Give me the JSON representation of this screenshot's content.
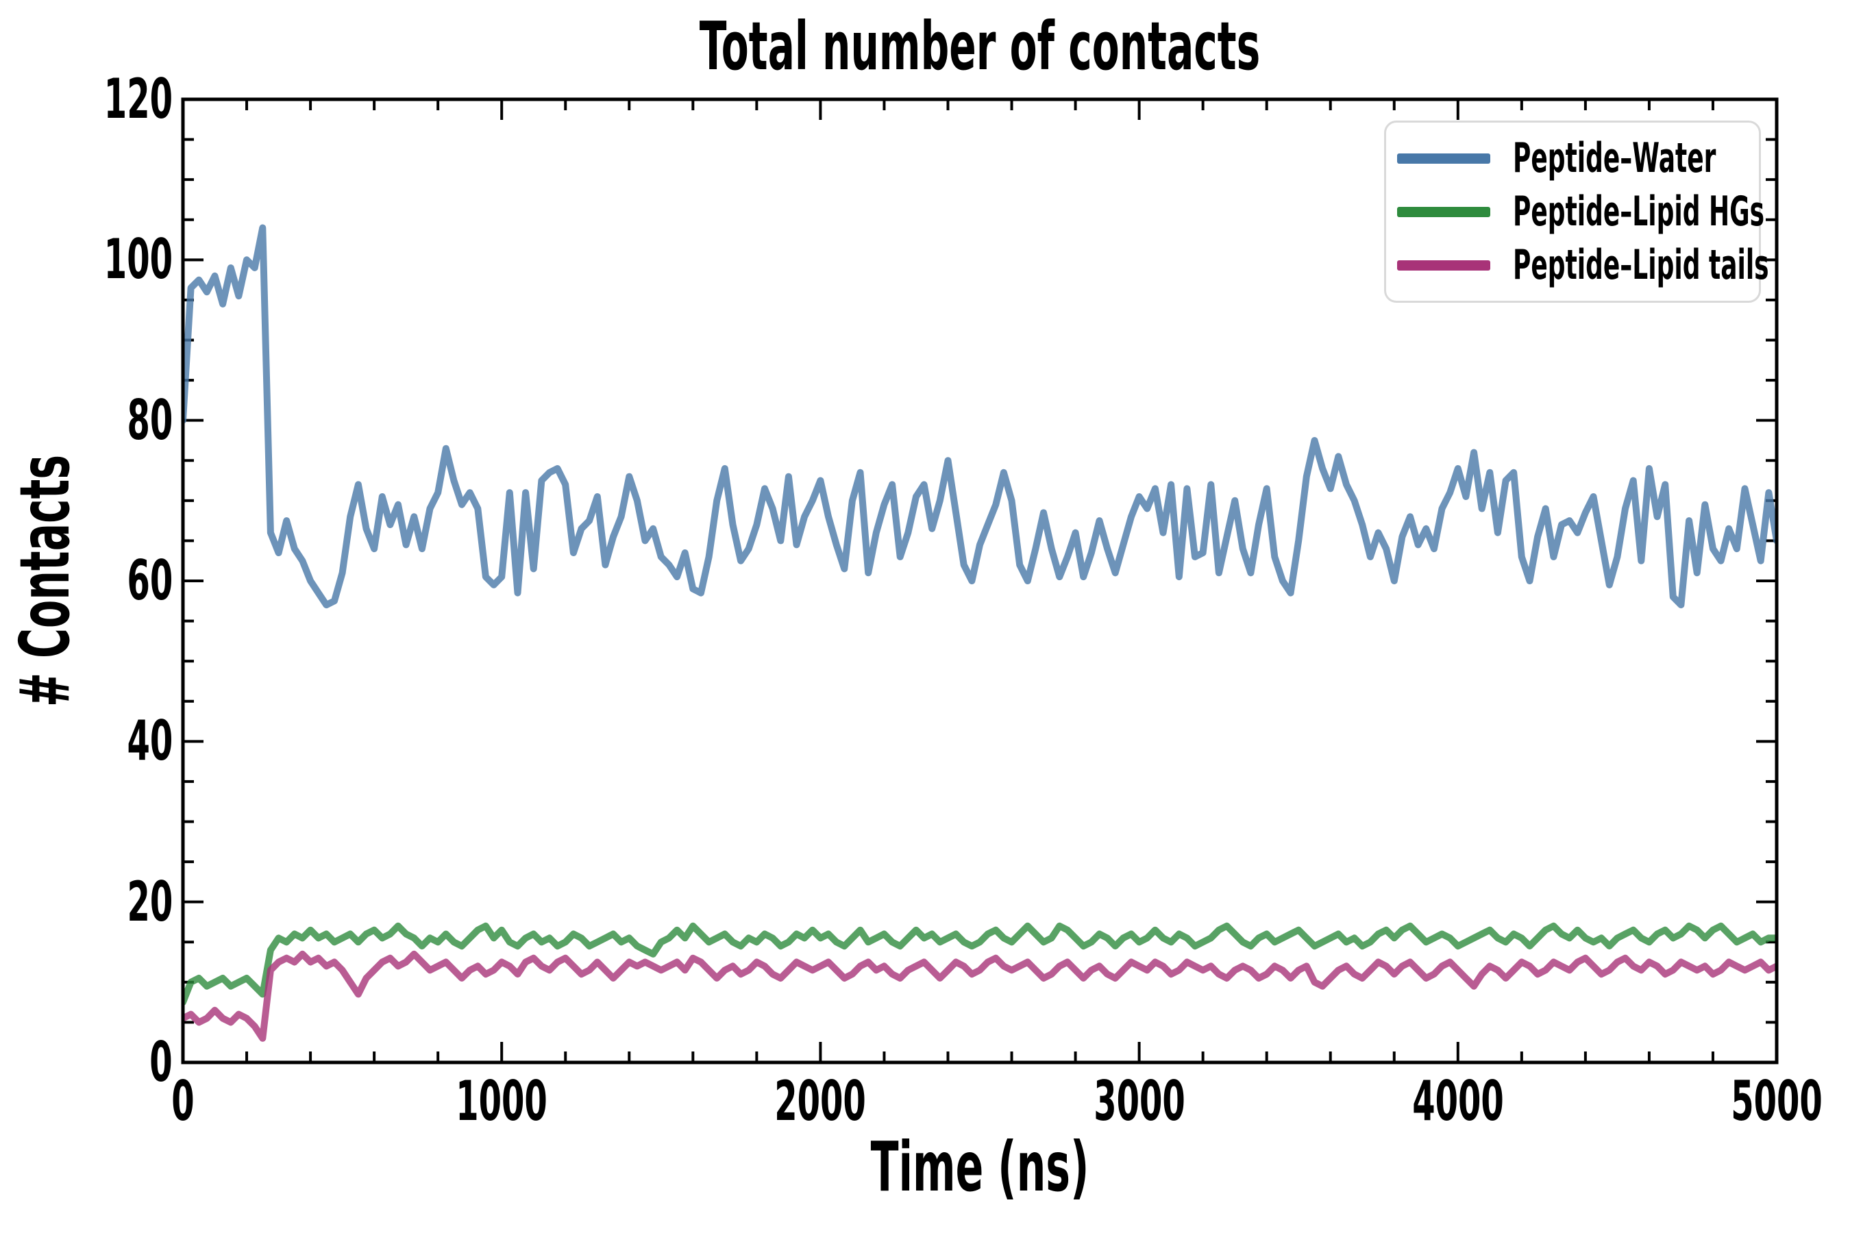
{
  "title": "Total number of contacts",
  "axes": {
    "xlabel": "Time (ns)",
    "ylabel": "# Contacts",
    "xlim": [
      0,
      5000
    ],
    "ylim": [
      0,
      120
    ],
    "x_major_ticks": [
      0,
      1000,
      2000,
      3000,
      4000,
      5000
    ],
    "y_major_ticks": [
      0,
      20,
      40,
      60,
      80,
      100,
      120
    ],
    "x_minor_step": 200,
    "y_minor_step": 5
  },
  "legend": {
    "position": "upper right",
    "border_color": "#d9d9d9"
  },
  "chart_data": {
    "type": "line",
    "title": "Total number of contacts",
    "xlabel": "Time (ns)",
    "ylabel": "# Contacts",
    "xlim": [
      0,
      5000
    ],
    "ylim": [
      0,
      120
    ],
    "grid": false,
    "legend_position": "upper right",
    "x_start": 0,
    "x_step": 25,
    "series": [
      {
        "name": "Peptide–Water",
        "color": "#4878A8",
        "values": [
          80,
          96.5,
          97.5,
          96,
          98,
          94.5,
          99,
          95.5,
          100,
          99,
          104,
          66,
          63.5,
          67.5,
          64,
          62.5,
          60,
          58.5,
          57,
          57.5,
          61,
          68,
          72,
          66.5,
          64,
          70.5,
          67,
          69.5,
          64.5,
          68,
          64,
          69,
          71,
          76.5,
          72.5,
          69.5,
          71,
          69,
          60.5,
          59.5,
          60.5,
          71,
          58.5,
          71,
          61.5,
          72.5,
          73.5,
          74,
          72,
          63.5,
          66.5,
          67.5,
          70.5,
          62,
          65.5,
          68,
          73,
          70,
          65,
          66.5,
          63,
          62,
          60.5,
          63.5,
          59,
          58.5,
          63,
          70,
          74,
          67,
          62.5,
          64,
          67,
          71.5,
          69,
          65,
          73,
          64.5,
          68,
          70,
          72.5,
          68,
          64.5,
          61.5,
          70,
          73.5,
          61,
          66,
          69.5,
          72,
          63,
          66,
          70.5,
          72,
          66.5,
          70,
          75,
          68.5,
          62,
          60,
          64.5,
          67,
          69.5,
          73.5,
          70,
          62,
          60,
          64,
          68.5,
          64,
          60.5,
          63,
          66,
          60.5,
          63.5,
          67.5,
          64,
          61,
          64.5,
          68,
          70.5,
          69,
          71.5,
          66,
          72,
          60.5,
          71.5,
          63,
          63.5,
          72,
          61,
          65.5,
          70,
          64,
          61,
          67,
          71.5,
          63,
          60,
          58.5,
          65,
          73,
          77.5,
          74,
          71.5,
          75.5,
          72,
          70,
          67,
          63,
          66,
          64,
          60,
          65.5,
          68,
          64.5,
          66.5,
          64,
          69,
          71,
          74,
          70.5,
          76,
          69,
          73.5,
          66,
          72.5,
          73.5,
          63,
          60,
          65.5,
          69,
          63,
          67,
          67.5,
          66,
          68.5,
          70.5,
          65,
          59.5,
          63,
          69,
          72.5,
          62.5,
          74,
          68,
          72,
          58,
          57,
          67.5,
          61,
          69.5,
          64,
          62.5,
          66.5,
          64,
          71.5,
          67,
          62.5,
          71,
          65
        ]
      },
      {
        "name": "Peptide–Lipid HGs",
        "color": "#2E8B3D",
        "values": [
          7.5,
          10,
          10.5,
          9.5,
          10,
          10.5,
          9.5,
          10,
          10.5,
          9.5,
          8.5,
          14,
          15.5,
          15,
          16,
          15.5,
          16.5,
          15.5,
          16,
          15,
          15.5,
          16,
          15,
          16,
          16.5,
          15.5,
          16,
          17,
          16,
          15.5,
          14.5,
          15.5,
          15,
          16,
          15,
          14.5,
          15.5,
          16.5,
          17,
          15.5,
          16.5,
          15,
          14.5,
          15.5,
          16,
          15,
          15.5,
          14.5,
          15,
          16,
          15.5,
          14.5,
          15,
          15.5,
          16,
          15,
          15.5,
          14.5,
          14,
          13.5,
          15,
          15.5,
          16.5,
          15.5,
          17,
          16,
          15,
          15.5,
          16,
          15,
          14.5,
          15.5,
          15,
          16,
          15.5,
          14.5,
          15,
          16,
          15.5,
          16.5,
          15.5,
          16,
          15,
          14.5,
          15.5,
          16.5,
          15,
          15.5,
          16,
          15,
          14.5,
          15.5,
          16.5,
          15.5,
          16,
          15,
          15.5,
          16,
          15,
          14.5,
          15,
          16,
          16.5,
          15.5,
          15,
          16,
          17,
          16,
          15,
          15.5,
          17,
          16.5,
          15.5,
          14.5,
          15,
          16,
          15.5,
          14.5,
          15.5,
          16,
          15,
          15.5,
          16.5,
          15.5,
          15,
          16,
          15.5,
          14.5,
          15,
          15.5,
          16.5,
          17,
          16,
          15,
          14.5,
          15.5,
          16,
          15,
          15.5,
          16,
          16.5,
          15.5,
          14.5,
          15,
          15.5,
          16,
          15,
          15.5,
          14.5,
          15,
          16,
          16.5,
          15.5,
          16.5,
          17,
          16,
          15,
          15.5,
          16,
          15.5,
          14.5,
          15,
          15.5,
          16,
          16.5,
          15.5,
          15,
          16,
          15.5,
          14.5,
          15.5,
          16.5,
          17,
          16,
          15.5,
          16.5,
          15.5,
          15,
          15.5,
          14.5,
          15.5,
          16,
          16.5,
          15.5,
          15,
          16,
          16.5,
          15.5,
          16,
          17,
          16.5,
          15.5,
          16.5,
          17,
          16,
          15,
          15.5,
          16,
          15,
          15.5,
          15.5
        ]
      },
      {
        "name": "Peptide–Lipid tails",
        "color": "#A83378",
        "values": [
          5.5,
          6,
          5,
          5.5,
          6.5,
          5.5,
          5,
          6,
          5.5,
          4.5,
          3,
          11.5,
          12.5,
          13,
          12.5,
          13.5,
          12.5,
          13,
          12,
          12.5,
          11.5,
          10,
          8.5,
          10.5,
          11.5,
          12.5,
          13,
          12,
          12.5,
          13.5,
          12.5,
          11.5,
          12,
          12.5,
          11.5,
          10.5,
          11.5,
          12,
          11,
          11.5,
          12.5,
          12,
          11,
          12.5,
          13,
          12,
          11.5,
          12.5,
          13,
          12,
          11,
          11.5,
          12.5,
          11.5,
          10.5,
          11.5,
          12.5,
          12,
          12.5,
          12,
          11.5,
          12,
          12.5,
          11.5,
          13,
          12.5,
          11.5,
          10.5,
          11.5,
          12,
          11,
          11.5,
          12.5,
          12,
          11,
          10.5,
          11.5,
          12.5,
          12,
          11.5,
          12,
          12.5,
          11.5,
          10.5,
          11,
          12,
          12.5,
          11.5,
          12,
          11,
          10.5,
          11.5,
          12,
          12.5,
          11.5,
          10.5,
          11.5,
          12.5,
          12,
          11,
          11.5,
          12.5,
          13,
          12,
          11.5,
          12,
          12.5,
          11.5,
          10.5,
          11,
          12,
          12.5,
          11.5,
          10.5,
          11.5,
          12,
          11,
          10.5,
          11.5,
          12.5,
          12,
          11.5,
          12.5,
          12,
          11,
          11.5,
          12.5,
          12,
          11.5,
          12,
          11,
          10.5,
          11.5,
          12,
          11.5,
          10.5,
          11,
          12,
          11.5,
          10.5,
          11.5,
          12,
          10,
          9.5,
          10.5,
          11.5,
          12,
          11,
          10.5,
          11.5,
          12.5,
          12,
          11,
          12,
          12.5,
          11.5,
          10.5,
          11,
          12,
          12.5,
          11.5,
          10.5,
          9.5,
          11,
          12,
          11.5,
          10.5,
          11.5,
          12.5,
          12,
          11,
          11.5,
          12.5,
          12,
          11.5,
          12.5,
          13,
          12,
          11,
          11.5,
          12.5,
          13,
          12,
          11.5,
          12.5,
          12,
          11,
          11.5,
          12.5,
          12,
          11.5,
          12,
          11,
          11.5,
          12.5,
          12,
          11.5,
          12,
          12.5,
          11.5,
          12
        ]
      }
    ]
  }
}
